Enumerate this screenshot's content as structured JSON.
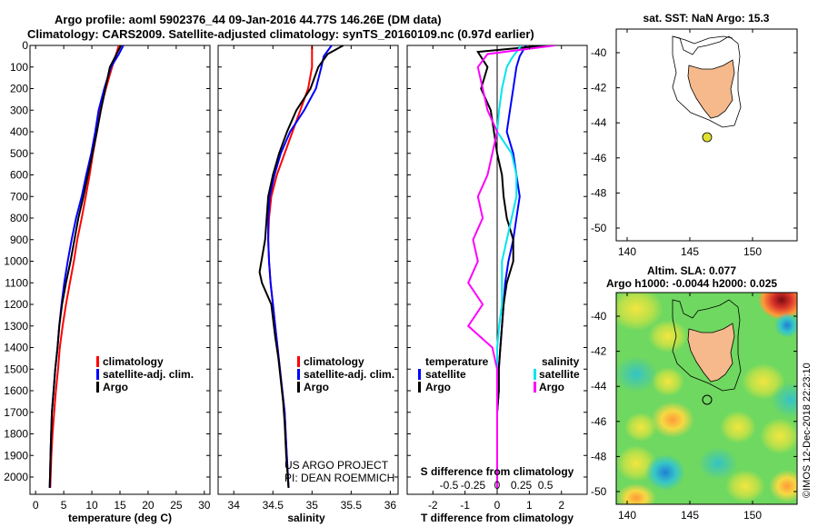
{
  "header": {
    "line1": "Argo profile: aoml 5902376_44 09-Jan-2016 44.77S 146.26E (DM data)",
    "line2": "Climatology: CARS2009. Satellite-adjusted climatology: synTS_20160109.nc (0.97d earlier)"
  },
  "colors": {
    "climatology": "#ff0000",
    "satellite": "#0000ff",
    "argo": "#000000",
    "s_satellite": "#00e5ee",
    "s_argo": "#ff00ff",
    "land": "#f5b98c",
    "argo_dot": "#e0e030"
  },
  "chart_data": [
    {
      "id": "temperature",
      "type": "line",
      "xlabel": "temperature (deg C)",
      "xlim": [
        -1,
        31
      ],
      "xticks": [
        0,
        5,
        10,
        15,
        20,
        25,
        30
      ],
      "ylim": [
        0,
        2080
      ],
      "yticks": [
        0,
        100,
        200,
        300,
        400,
        500,
        600,
        700,
        800,
        900,
        1000,
        1100,
        1200,
        1300,
        1400,
        1500,
        1600,
        1700,
        1800,
        1900,
        2000
      ],
      "ytick_labels": [
        "0",
        "100",
        "200",
        "300",
        "400",
        "500",
        "600",
        "700",
        "800",
        "900",
        "1000",
        "1100",
        "1200",
        "1300",
        "1400",
        "1500",
        "1600",
        "1700",
        "1800",
        "1900",
        "2000"
      ],
      "legend": [
        "climatology",
        "satellite-adj. clim.",
        "Argo"
      ],
      "series": [
        {
          "name": "climatology",
          "color": "#ff0000",
          "x": [
            14.8,
            13.6,
            12.5,
            11.5,
            10.9,
            10.2,
            9.6,
            8.9,
            8.2,
            7.4,
            6.8,
            6.1,
            5.4,
            4.8,
            4.3,
            4.0,
            3.6,
            3.3,
            3.0,
            2.8,
            2.6
          ],
          "y": [
            0,
            100,
            200,
            300,
            400,
            500,
            600,
            700,
            800,
            900,
            1000,
            1100,
            1200,
            1300,
            1400,
            1500,
            1600,
            1700,
            1800,
            1900,
            2050
          ]
        },
        {
          "name": "satellite-adj. clim.",
          "color": "#0000ff",
          "x": [
            15.6,
            14.8,
            13.4,
            12.2,
            11.2,
            10.6,
            9.9,
            9.0,
            8.2,
            7.2,
            6.4,
            5.7,
            5.1,
            4.6,
            4.2,
            3.9,
            3.5,
            3.2,
            2.9,
            2.7,
            2.5
          ],
          "y": [
            0,
            40,
            100,
            200,
            300,
            400,
            500,
            600,
            700,
            800,
            900,
            1000,
            1100,
            1200,
            1300,
            1400,
            1500,
            1600,
            1700,
            1850,
            2050
          ]
        },
        {
          "name": "Argo",
          "color": "#000000",
          "x": [
            15.2,
            14.6,
            13.2,
            12.4,
            11.6,
            10.9,
            10.1,
            9.3,
            8.5,
            7.6,
            6.9,
            6.2,
            5.4,
            4.7,
            4.2,
            3.9,
            3.5,
            3.2,
            2.9,
            2.7,
            2.5
          ],
          "y": [
            0,
            30,
            100,
            200,
            300,
            400,
            500,
            600,
            700,
            800,
            900,
            1000,
            1100,
            1200,
            1300,
            1400,
            1500,
            1600,
            1700,
            1850,
            2050
          ]
        }
      ]
    },
    {
      "id": "salinity",
      "type": "line",
      "xlabel": "salinity",
      "xlim": [
        33.8,
        36.1
      ],
      "xticks": [
        34,
        34.5,
        35,
        35.5,
        36
      ],
      "xtick_labels": [
        "34",
        "34.5",
        "35",
        "35.5",
        "36"
      ],
      "ylim": [
        0,
        2080
      ],
      "legend": [
        "climatology",
        "satellite-adj. clim.",
        "Argo"
      ],
      "annotation": [
        "US ARGO PROJECT",
        "PI: DEAN ROEMMICH"
      ],
      "series": [
        {
          "name": "climatology",
          "color": "#ff0000",
          "x": [
            35.0,
            35.0,
            35.0,
            34.95,
            34.85,
            34.75,
            34.65,
            34.55,
            34.48,
            34.45,
            34.44,
            34.45,
            34.47,
            34.5,
            34.53,
            34.56,
            34.59,
            34.62,
            34.65,
            34.67,
            34.7
          ],
          "y": [
            0,
            50,
            100,
            200,
            300,
            400,
            500,
            600,
            700,
            800,
            900,
            1000,
            1100,
            1200,
            1300,
            1400,
            1500,
            1600,
            1700,
            1850,
            2050
          ]
        },
        {
          "name": "satellite-adj. clim.",
          "color": "#0000ff",
          "x": [
            35.25,
            35.15,
            35.12,
            35.05,
            34.9,
            34.72,
            34.6,
            34.52,
            34.46,
            34.44,
            34.44,
            34.45,
            34.47,
            34.5,
            34.53,
            34.56,
            34.59,
            34.62,
            34.65,
            34.67,
            34.7
          ],
          "y": [
            0,
            50,
            100,
            200,
            300,
            400,
            500,
            600,
            700,
            800,
            900,
            1000,
            1100,
            1200,
            1300,
            1400,
            1500,
            1600,
            1700,
            1850,
            2050
          ]
        },
        {
          "name": "Argo",
          "color": "#000000",
          "x": [
            35.4,
            35.2,
            35.08,
            34.98,
            34.8,
            34.68,
            34.58,
            34.5,
            34.44,
            34.42,
            34.4,
            34.33,
            34.36,
            34.48,
            34.53,
            34.57,
            34.6,
            34.63,
            34.65,
            34.67,
            34.7
          ],
          "y": [
            0,
            40,
            100,
            200,
            300,
            400,
            500,
            600,
            700,
            800,
            900,
            1050,
            1100,
            1200,
            1350,
            1450,
            1550,
            1650,
            1750,
            1900,
            2050
          ]
        }
      ]
    },
    {
      "id": "difference",
      "type": "line",
      "xlabel": "T difference from climatology",
      "xlabel_top": "S difference from climatology",
      "xlim": [
        -2.8,
        2.8
      ],
      "xticks": [
        -2,
        -1,
        0,
        1,
        2
      ],
      "xtick_labels": [
        "-2",
        "-1",
        "0",
        "1",
        "2"
      ],
      "s_ticks": [
        -0.5,
        -0.25,
        0,
        0.25,
        0.5
      ],
      "s_tick_labels": [
        "-0.5",
        "-0.25",
        "0",
        "0.25",
        "0.5"
      ],
      "ylim": [
        0,
        2080
      ],
      "legend_left_title": "temperature",
      "legend_right_title": "salinity",
      "legend_left": [
        "satellite",
        "Argo"
      ],
      "legend_right": [
        "satellite",
        "Argo"
      ],
      "series": [
        {
          "name": "T satellite",
          "color": "#0000ff",
          "x": [
            0.9,
            0.7,
            0.6,
            0.5,
            0.4,
            0.3,
            0.5,
            0.6,
            0.7,
            0.6,
            0.5,
            0.35,
            0.25,
            0.2,
            0.15,
            0.1,
            0.05,
            0.05,
            0.0,
            0.0,
            0.0
          ],
          "y": [
            0,
            50,
            100,
            200,
            300,
            400,
            500,
            600,
            700,
            800,
            900,
            1000,
            1100,
            1200,
            1300,
            1400,
            1500,
            1600,
            1700,
            1850,
            2050
          ]
        },
        {
          "name": "T Argo",
          "color": "#000000",
          "x": [
            1.5,
            -0.6,
            -0.3,
            -0.5,
            -0.2,
            -0.1,
            0.0,
            0.15,
            0.2,
            0.3,
            0.5,
            0.5,
            0.3,
            0.2,
            0.15,
            0.1,
            0.05,
            0.05,
            0.0,
            0.0,
            0.0
          ],
          "y": [
            0,
            30,
            100,
            200,
            300,
            400,
            500,
            600,
            700,
            800,
            900,
            1000,
            1100,
            1200,
            1300,
            1400,
            1500,
            1600,
            1700,
            1850,
            2050
          ]
        },
        {
          "name": "S satellite",
          "color": "#00e5ee",
          "x": [
            0.25,
            0.15,
            0.1,
            0.05,
            0.02,
            0.0,
            0.15,
            0.2,
            0.2,
            0.15,
            0.1,
            0.05,
            0.05,
            0.05,
            0.02,
            0.0,
            0.0,
            0.0,
            0.0,
            0.0,
            0.0
          ],
          "y": [
            0,
            60,
            100,
            200,
            300,
            400,
            500,
            600,
            700,
            800,
            900,
            1000,
            1100,
            1200,
            1300,
            1400,
            1500,
            1600,
            1700,
            1850,
            2050
          ]
        },
        {
          "name": "S Argo",
          "color": "#ff00ff",
          "x": [
            0.6,
            -0.1,
            -0.2,
            -0.15,
            -0.1,
            0.0,
            -0.05,
            -0.1,
            -0.2,
            -0.15,
            -0.25,
            -0.2,
            -0.3,
            -0.15,
            -0.3,
            -0.05,
            0.0,
            0.0,
            0.0,
            0.0,
            0.0
          ],
          "y": [
            0,
            40,
            100,
            200,
            300,
            400,
            500,
            600,
            700,
            800,
            900,
            1000,
            1100,
            1200,
            1300,
            1400,
            1500,
            1600,
            1700,
            1850,
            2050
          ]
        }
      ]
    }
  ],
  "maps": {
    "top": {
      "title": "sat. SST: NaN Argo: 15.3",
      "lat_ticks": [
        "-40",
        "-42",
        "-44",
        "-46",
        "-48",
        "-50"
      ],
      "lon_ticks": [
        "140",
        "145",
        "150"
      ]
    },
    "bottom": {
      "title1": "Altim. SLA: 0.077",
      "title2": "Argo h1000: -0.0044 h2000: 0.025",
      "lat_ticks": [
        "-40",
        "-42",
        "-44",
        "-46",
        "-48",
        "-50"
      ],
      "lon_ticks": [
        "140",
        "145",
        "150"
      ],
      "credit": "©IMOS 12-Dec-2018 22:23:10"
    }
  }
}
